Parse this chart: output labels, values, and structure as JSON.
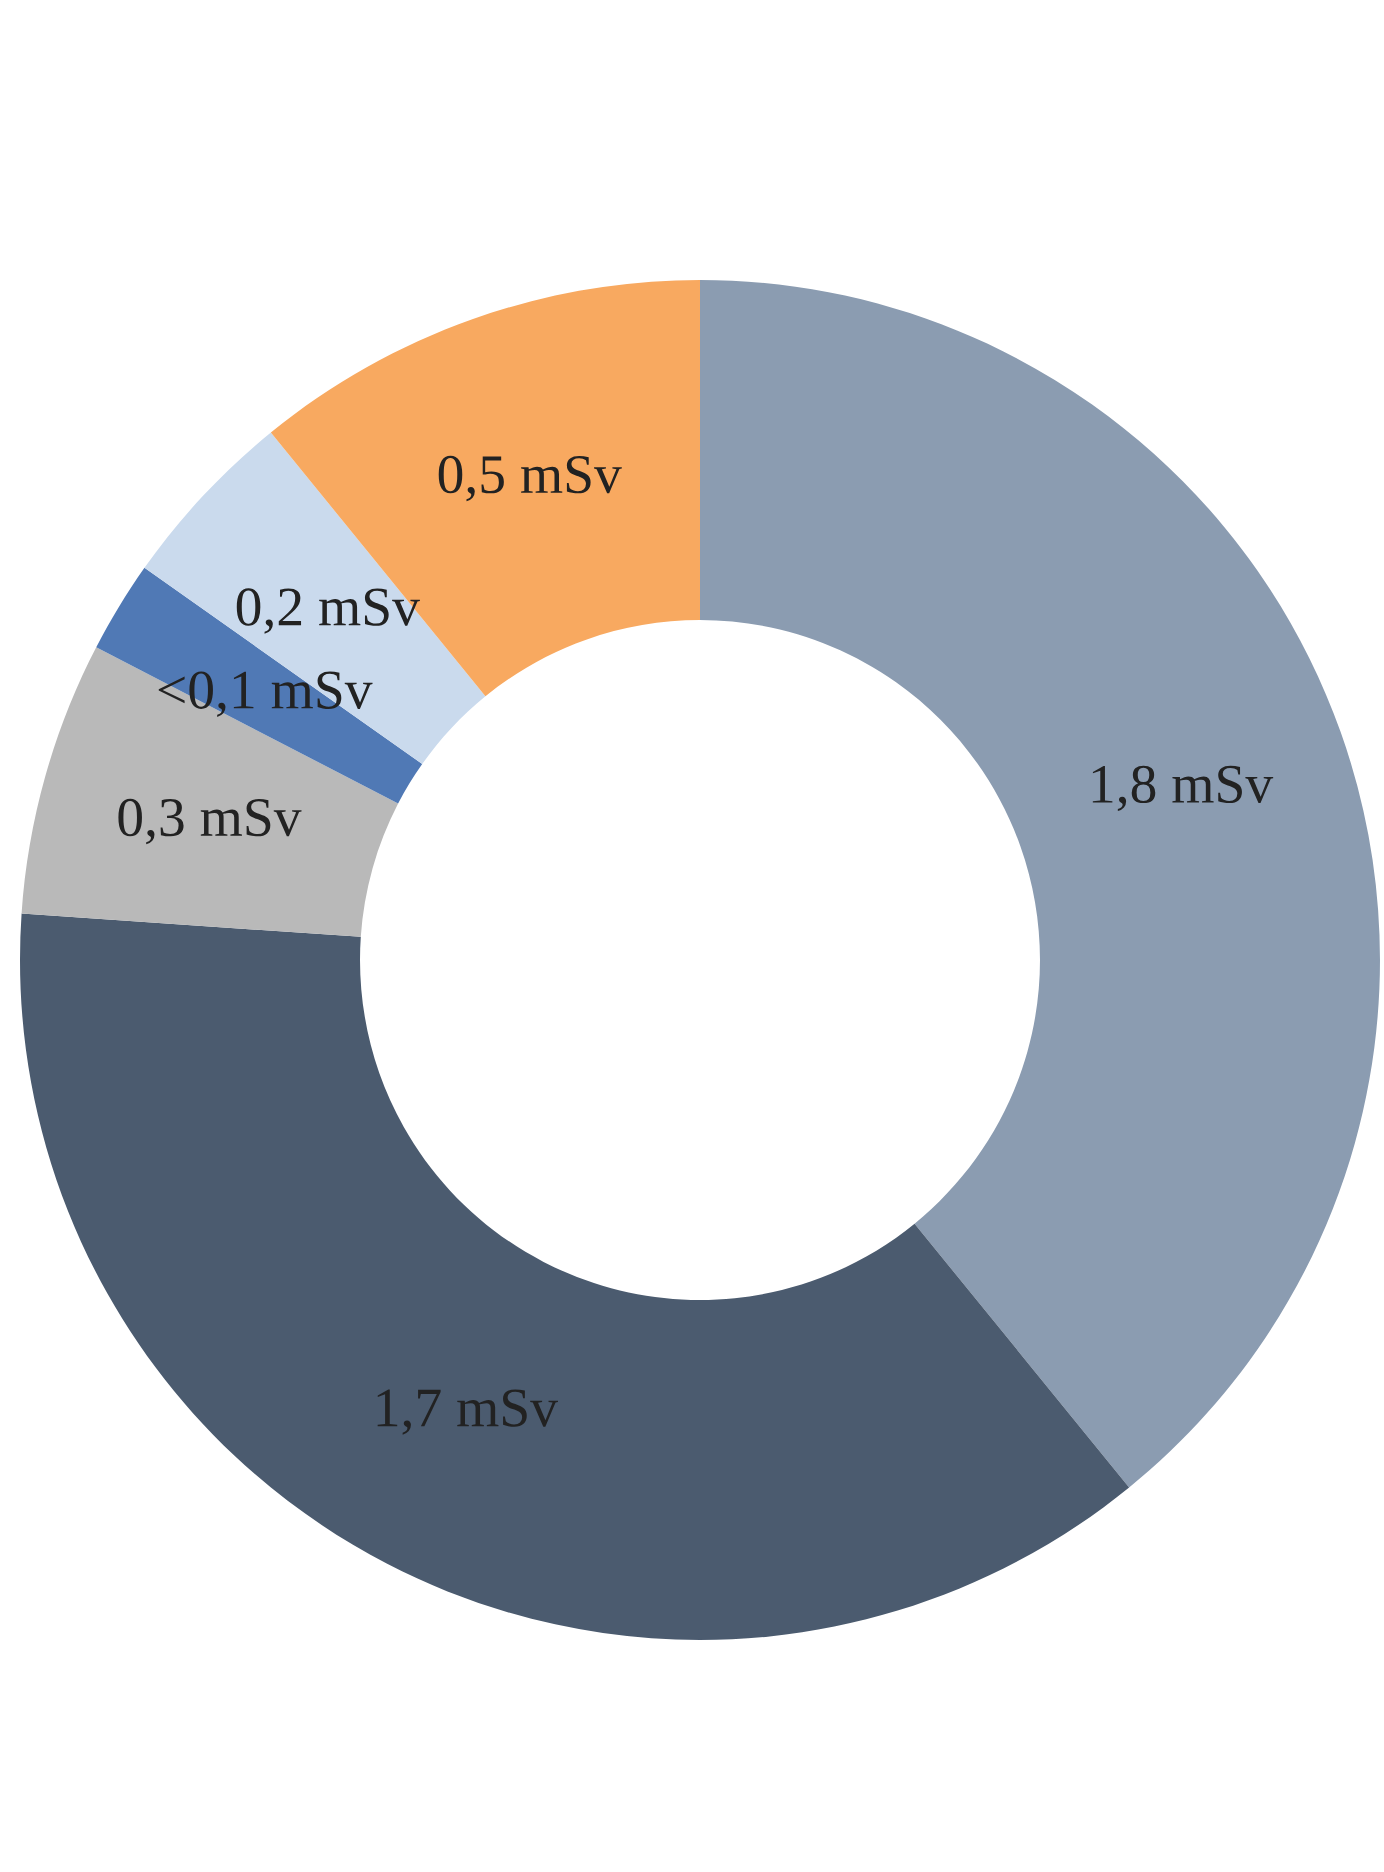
{
  "chart_data": {
    "type": "donut",
    "categories": [
      null,
      null,
      null,
      null,
      null,
      null
    ],
    "values": [
      1.8,
      1.7,
      0.3,
      0.1,
      0.2,
      0.5
    ],
    "value_labels": [
      "1,8 mSv",
      "1,7 mSv",
      "0,3 mSv",
      "<0,1 mSv",
      "0,2 mSv",
      "0,5 mSv"
    ],
    "colors": [
      "#8b9cb1",
      "#4b5b6f",
      "#b9b9b9",
      "#5079b5",
      "#cadaed",
      "#f8a960"
    ]
  }
}
